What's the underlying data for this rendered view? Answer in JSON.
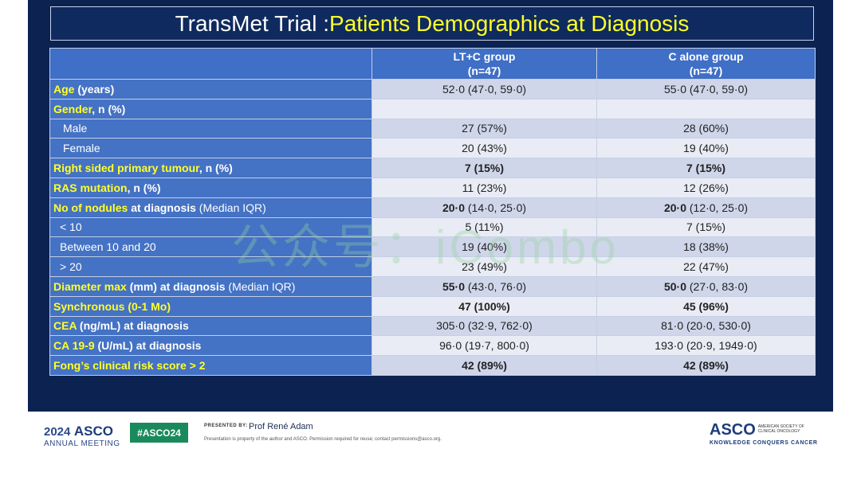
{
  "title": {
    "part1": "TransMet Trial : ",
    "part2": "Patients Demographics at Diagnosis"
  },
  "table": {
    "headers": [
      {
        "line1": "",
        "line2": ""
      },
      {
        "line1": "LT+C group",
        "line2": "(n=47)"
      },
      {
        "line1": "C alone group",
        "line2": "(n=47)"
      }
    ],
    "rows": [
      {
        "label_y": "Age",
        "label_w": " (years)",
        "label_n": "",
        "a": "52·0 (47·0, 59·0)",
        "b": "55·0 (47·0, 59·0)"
      },
      {
        "label_y": "Gender",
        "label_w": ", n (%)",
        "label_n": "",
        "a": "",
        "b": ""
      },
      {
        "label_y": "",
        "label_w": "",
        "label_n": "Male",
        "a": "27 (57%)",
        "b": "28 (60%)"
      },
      {
        "label_y": "",
        "label_w": "",
        "label_n": "Female",
        "a": "20 (43%)",
        "b": "19 (40%)"
      },
      {
        "label_y": "Right sided primary tumour",
        "label_w": ", n (%)",
        "label_n": "",
        "a": "7 (15%)",
        "b": "7 (15%)"
      },
      {
        "label_y": "RAS mutation",
        "label_w": ", n (%)",
        "label_n": "",
        "a": "11 (23%)",
        "b": "12 (26%)"
      },
      {
        "label_y": "No of nodules",
        "label_w": " at diagnosis",
        "label_n": " (Median IQR)",
        "a_bold": "20·0",
        "a": " (14·0, 25·0)",
        "b_bold": "20·0",
        "b": " (12·0, 25·0)"
      },
      {
        "label_y": "",
        "label_w": "",
        "label_n": "< 10",
        "a": "5 (11%)",
        "b": "7 (15%)"
      },
      {
        "label_y": "",
        "label_w": "",
        "label_n": "Between  10 and 20",
        "a": "19 (40%)",
        "b": "18 (38%)"
      },
      {
        "label_y": "",
        "label_w": "",
        "label_n": "> 20",
        "a": "23 (49%)",
        "b": "22 (47%)"
      },
      {
        "label_y": "Diameter max",
        "label_w": " (mm) at diagnosis",
        "label_n": " (Median IQR)",
        "a_bold": "55·0",
        "a": " (43·0, 76·0)",
        "b_bold": "50·0",
        "b": " (27·0, 83·0)"
      },
      {
        "label_y": "Synchronous (0-1 Mo)",
        "label_w": "",
        "label_n": "",
        "a": "47 (100%)",
        "b": "45 (96%)"
      },
      {
        "label_y": "CEA",
        "label_w": "  (ng/mL) at diagnosis",
        "label_n": "",
        "a": "305·0 (32·9, 762·0)",
        "b": "81·0 (20·0, 530·0)"
      },
      {
        "label_y": "CA 19-9",
        "label_w": " (U/mL) at diagnosis",
        "label_n": "",
        "a": "96·0 (19·7, 800·0)",
        "b": "193·0 (20·9, 1949·0)"
      },
      {
        "label_y": " Fong’s clinical risk score > 2",
        "label_w": "",
        "label_n": "",
        "a": "42 (89%)",
        "b": "42 (89%)"
      }
    ]
  },
  "watermark": "公众号：iCombo",
  "footer": {
    "year": "2024",
    "asco": "ASCO",
    "annual": "ANNUAL MEETING",
    "hashtag": "#ASCO24",
    "presented_by": "PRESENTED BY:",
    "presenter": "Prof René Adam",
    "disclaimer": "Presentation is property of the author and ASCO. Permission required for reuse; contact permissions@asco.org.",
    "logo": "ASCO",
    "society_line1": "AMERICAN SOCIETY OF",
    "society_line2": "CLINICAL ONCOLOGY",
    "tagline": "KNOWLEDGE CONQUERS CANCER"
  }
}
